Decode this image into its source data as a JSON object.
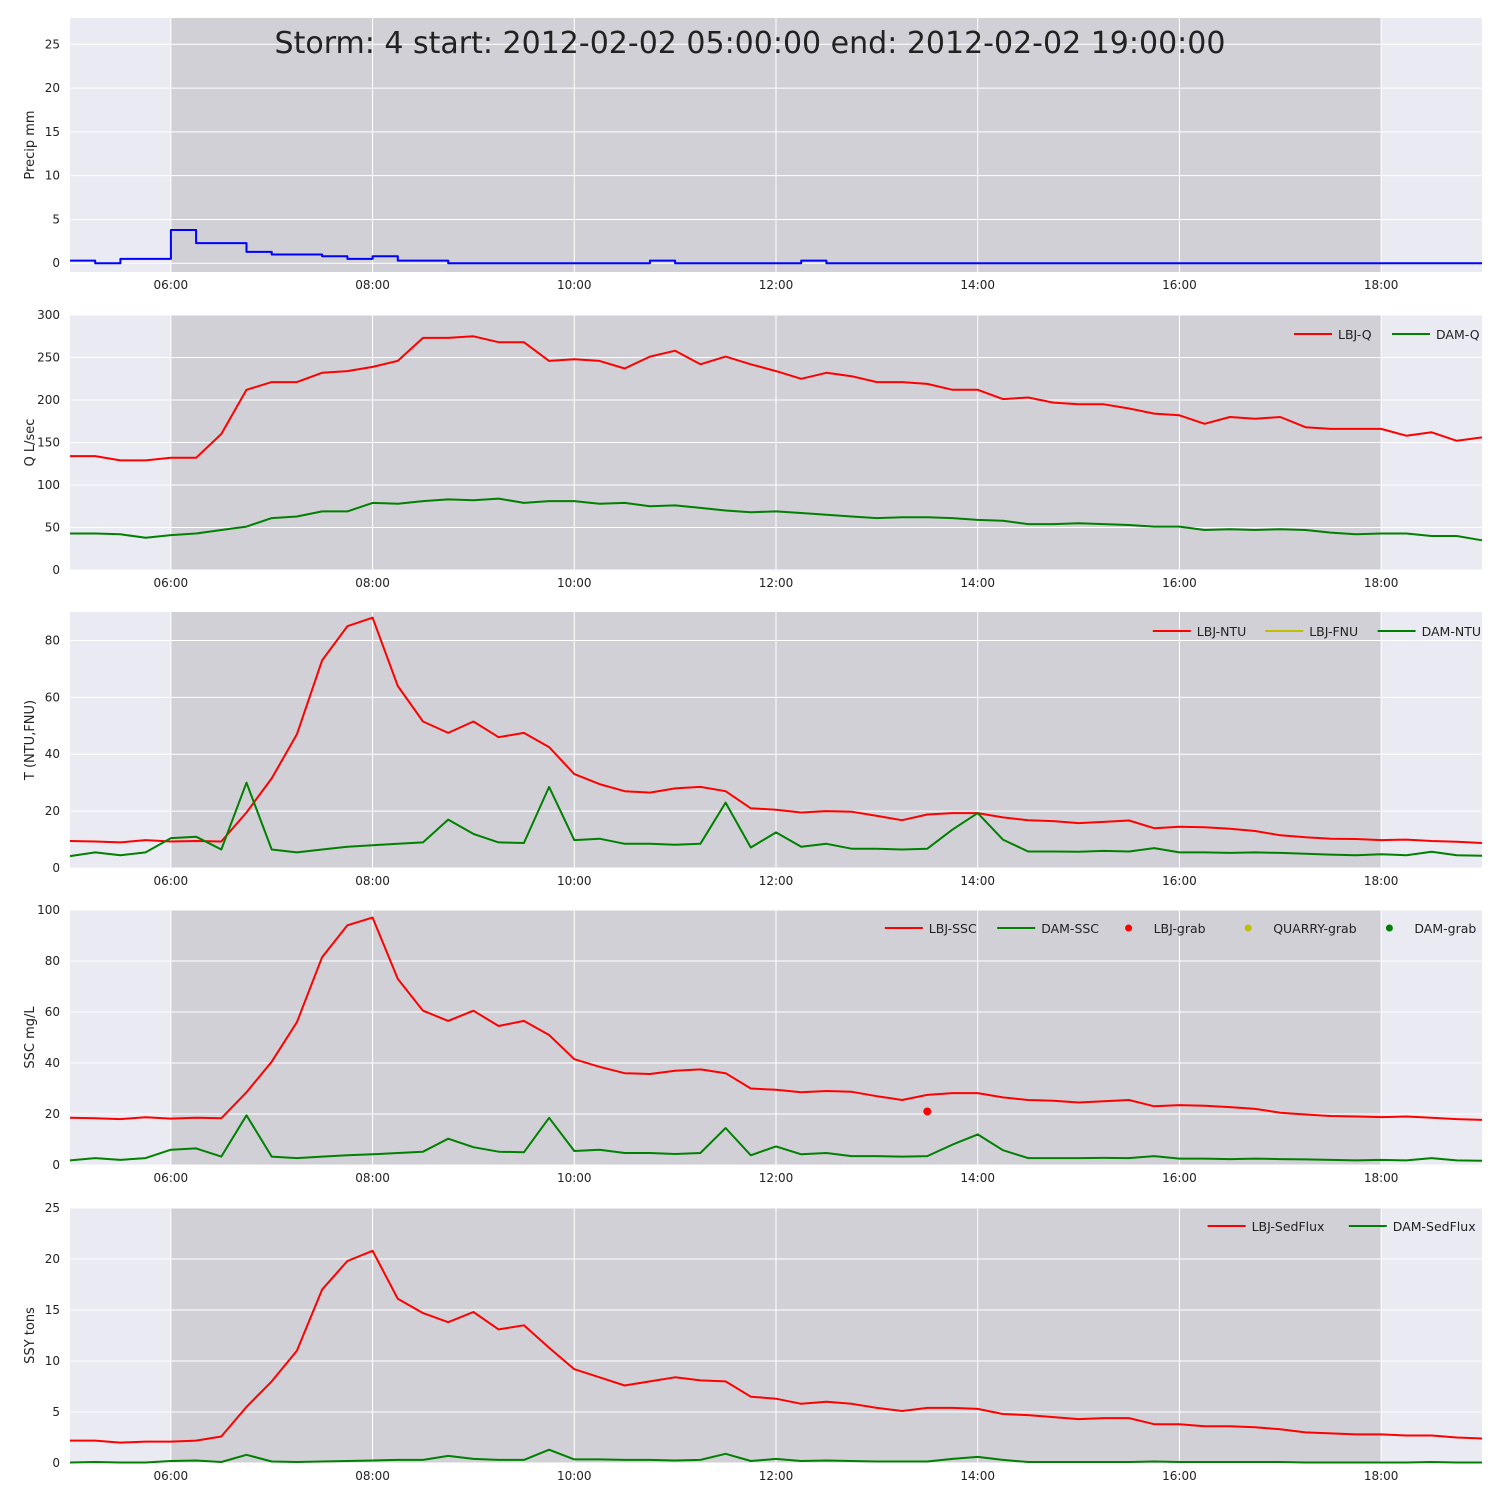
{
  "title": "Storm: 4 start: 2012-02-02 05:00:00 end: 2012-02-02 19:00:00",
  "colors": {
    "red": "#ff0000",
    "green": "#008000",
    "blue": "#0000ff",
    "yellow": "#bfbf00",
    "panel_bg": "#eaeaf2",
    "storm_shade": "#d0d0d6",
    "grid": "#ffffff"
  },
  "chart_data": [
    {
      "type": "line",
      "ylabel": "Precip mm",
      "ylim": [
        -1,
        28
      ],
      "yticks": [
        0,
        5,
        10,
        15,
        20,
        25
      ],
      "xlim": [
        "05:00",
        "19:00"
      ],
      "xticks": [
        "06:00",
        "08:00",
        "10:00",
        "12:00",
        "14:00",
        "16:00",
        "18:00"
      ],
      "storm_window": [
        "06:00",
        "18:00"
      ],
      "legend": [],
      "series": [
        {
          "step": true,
          "color": "blue",
          "x": [
            "05:00",
            "05:15",
            "05:30",
            "05:45",
            "06:00",
            "06:15",
            "06:30",
            "06:45",
            "07:00",
            "07:15",
            "07:30",
            "07:45",
            "08:00",
            "08:15",
            "08:30",
            "08:45",
            "09:00",
            "09:15",
            "09:30",
            "09:45",
            "10:00",
            "10:15",
            "10:30",
            "10:45",
            "11:00",
            "11:15",
            "11:30",
            "11:45",
            "12:00",
            "12:15",
            "12:30",
            "12:45",
            "19:00"
          ],
          "y": [
            0.3,
            0,
            0.5,
            0.5,
            3.8,
            2.3,
            2.3,
            1.3,
            1.0,
            1.0,
            0.8,
            0.5,
            0.8,
            0.3,
            0.3,
            0,
            0,
            0,
            0,
            0,
            0,
            0,
            0,
            0.3,
            0,
            0,
            0,
            0,
            0,
            0.3,
            0,
            0,
            0
          ]
        }
      ]
    },
    {
      "type": "line",
      "ylabel": "Q L/sec",
      "ylim": [
        0,
        300
      ],
      "yticks": [
        0,
        50,
        100,
        150,
        200,
        250,
        300
      ],
      "xlim": [
        "05:00",
        "19:00"
      ],
      "xticks": [
        "06:00",
        "08:00",
        "10:00",
        "12:00",
        "14:00",
        "16:00",
        "18:00"
      ],
      "storm_window": [
        "06:00",
        "18:00"
      ],
      "legend": [
        {
          "label": "LBJ-Q",
          "color": "red",
          "kind": "line"
        },
        {
          "label": "DAM-Q",
          "color": "green",
          "kind": "line"
        }
      ],
      "series": [
        {
          "name": "LBJ-Q",
          "color": "red",
          "y": [
            134,
            134,
            129,
            129,
            132,
            132,
            160,
            212,
            221,
            221,
            232,
            234,
            239,
            246,
            273,
            273,
            275,
            268,
            268,
            246,
            248,
            246,
            237,
            251,
            258,
            242,
            251,
            242,
            234,
            225,
            232,
            228,
            221,
            221,
            219,
            212,
            212,
            201,
            203,
            197,
            195,
            195,
            190,
            184,
            182,
            172,
            180,
            178,
            180,
            168,
            166,
            166,
            166,
            158,
            162,
            152,
            156
          ]
        },
        {
          "name": "DAM-Q",
          "color": "green",
          "y": [
            43,
            43,
            42,
            38,
            41,
            43,
            47,
            51,
            61,
            63,
            69,
            69,
            79,
            78,
            81,
            83,
            82,
            84,
            79,
            81,
            81,
            78,
            79,
            75,
            76,
            73,
            70,
            68,
            69,
            67,
            65,
            63,
            61,
            62,
            62,
            61,
            59,
            58,
            54,
            54,
            55,
            54,
            53,
            51,
            51,
            47,
            48,
            47,
            48,
            47,
            44,
            42,
            43,
            43,
            40,
            40,
            35
          ]
        }
      ]
    },
    {
      "type": "line",
      "ylabel": "T (NTU,FNU)",
      "ylim": [
        0,
        90
      ],
      "yticks": [
        0,
        20,
        40,
        60,
        80
      ],
      "xlim": [
        "05:00",
        "19:00"
      ],
      "xticks": [
        "06:00",
        "08:00",
        "10:00",
        "12:00",
        "14:00",
        "16:00",
        "18:00"
      ],
      "storm_window": [
        "06:00",
        "18:00"
      ],
      "legend": [
        {
          "label": "LBJ-NTU",
          "color": "red",
          "kind": "line"
        },
        {
          "label": "LBJ-FNU",
          "color": "yellow",
          "kind": "line"
        },
        {
          "label": "DAM-NTU",
          "color": "green",
          "kind": "line"
        }
      ],
      "series": [
        {
          "name": "LBJ-NTU",
          "color": "red",
          "y": [
            9.5,
            9.3,
            9.0,
            9.8,
            9.3,
            9.5,
            9.3,
            19.5,
            31.5,
            47,
            73,
            85,
            88,
            64,
            51.5,
            47.5,
            51.5,
            46,
            47.5,
            42.5,
            33,
            29.5,
            27,
            26.5,
            28,
            28.5,
            27,
            21,
            20.5,
            19.5,
            20,
            19.8,
            18.3,
            16.8,
            18.8,
            19.3,
            19.3,
            17.8,
            16.8,
            16.5,
            15.8,
            16.2,
            16.7,
            14,
            14.5,
            14.3,
            13.8,
            13,
            11.5,
            10.8,
            10.3,
            10.2,
            9.8,
            10,
            9.5,
            9.2,
            8.8
          ]
        },
        {
          "name": "DAM-NTU",
          "color": "green",
          "y": [
            4.2,
            5.5,
            4.5,
            5.5,
            10.5,
            11,
            6.5,
            30,
            6.5,
            5.5,
            6.5,
            7.5,
            8,
            8.5,
            9,
            17,
            12,
            9,
            8.8,
            28.5,
            9.8,
            10.3,
            8.5,
            8.5,
            8.2,
            8.5,
            23,
            7.2,
            12.5,
            7.5,
            8.5,
            6.8,
            6.8,
            6.5,
            6.8,
            13.5,
            19.3,
            10,
            5.8,
            5.8,
            5.7,
            6,
            5.8,
            7,
            5.5,
            5.5,
            5.3,
            5.5,
            5.3,
            5,
            4.7,
            4.5,
            4.8,
            4.5,
            5.7,
            4.5,
            4.3
          ]
        }
      ]
    },
    {
      "type": "line",
      "ylabel": "SSC mg/L",
      "ylim": [
        0,
        100
      ],
      "yticks": [
        0,
        20,
        40,
        60,
        80,
        100
      ],
      "xlim": [
        "05:00",
        "19:00"
      ],
      "xticks": [
        "06:00",
        "08:00",
        "10:00",
        "12:00",
        "14:00",
        "16:00",
        "18:00"
      ],
      "storm_window": [
        "06:00",
        "18:00"
      ],
      "legend": [
        {
          "label": "LBJ-SSC",
          "color": "red",
          "kind": "line"
        },
        {
          "label": "DAM-SSC",
          "color": "green",
          "kind": "line"
        },
        {
          "label": "LBJ-grab",
          "color": "red",
          "kind": "dot"
        },
        {
          "label": "QUARRY-grab",
          "color": "yellow",
          "kind": "dot"
        },
        {
          "label": "DAM-grab",
          "color": "green",
          "kind": "dot"
        }
      ],
      "series": [
        {
          "name": "LBJ-SSC",
          "color": "red",
          "y": [
            18.5,
            18.3,
            18,
            18.7,
            18.2,
            18.5,
            18.3,
            28.5,
            40.5,
            56,
            81.5,
            94,
            97,
            73,
            60.5,
            56.5,
            60.5,
            54.5,
            56.5,
            51,
            41.5,
            38.5,
            36,
            35.7,
            37,
            37.5,
            36,
            30,
            29.5,
            28.5,
            29,
            28.7,
            27,
            25.5,
            27.5,
            28.2,
            28.2,
            26.5,
            25.5,
            25.2,
            24.5,
            25,
            25.5,
            23,
            23.5,
            23.2,
            22.7,
            22,
            20.5,
            19.8,
            19.2,
            19,
            18.8,
            19,
            18.5,
            18,
            17.7
          ]
        },
        {
          "name": "DAM-SSC",
          "color": "green",
          "y": [
            1.8,
            2.7,
            2,
            2.7,
            6,
            6.5,
            3.3,
            19.5,
            3.3,
            2.7,
            3.3,
            3.8,
            4.2,
            4.7,
            5.2,
            10.3,
            7,
            5.2,
            5,
            18.5,
            5.5,
            6,
            4.7,
            4.7,
            4.3,
            4.7,
            14.5,
            3.8,
            7.3,
            4.2,
            4.7,
            3.5,
            3.5,
            3.3,
            3.5,
            8,
            12,
            5.8,
            2.7,
            2.7,
            2.7,
            2.8,
            2.7,
            3.5,
            2.5,
            2.5,
            2.3,
            2.5,
            2.3,
            2.2,
            2,
            1.8,
            2,
            1.8,
            2.7,
            1.8,
            1.7
          ]
        },
        {
          "name": "LBJ-grab",
          "color": "red",
          "kind": "dot",
          "x": [
            "13:30"
          ],
          "y": [
            21
          ]
        }
      ]
    },
    {
      "type": "line",
      "ylabel": "SSY tons",
      "ylim": [
        0,
        25
      ],
      "yticks": [
        0,
        5,
        10,
        15,
        20,
        25
      ],
      "xlim": [
        "05:00",
        "19:00"
      ],
      "xticks": [
        "06:00",
        "08:00",
        "10:00",
        "12:00",
        "14:00",
        "16:00",
        "18:00"
      ],
      "storm_window": [
        "06:00",
        "18:00"
      ],
      "legend": [
        {
          "label": "LBJ-SedFlux",
          "color": "red",
          "kind": "line"
        },
        {
          "label": "DAM-SedFlux",
          "color": "green",
          "kind": "line"
        }
      ],
      "series": [
        {
          "name": "LBJ-SedFlux",
          "color": "red",
          "y": [
            2.2,
            2.2,
            2.0,
            2.1,
            2.1,
            2.2,
            2.6,
            5.5,
            8,
            11,
            17,
            19.8,
            20.8,
            16.1,
            14.7,
            13.8,
            14.8,
            13.1,
            13.5,
            11.3,
            9.2,
            8.4,
            7.6,
            8,
            8.4,
            8.1,
            8,
            6.5,
            6.3,
            5.8,
            6,
            5.8,
            5.4,
            5.1,
            5.4,
            5.4,
            5.3,
            4.8,
            4.7,
            4.5,
            4.3,
            4.4,
            4.4,
            3.8,
            3.8,
            3.6,
            3.6,
            3.5,
            3.3,
            3,
            2.9,
            2.8,
            2.8,
            2.7,
            2.7,
            2.5,
            2.4
          ]
        },
        {
          "name": "DAM-SedFlux",
          "color": "green",
          "y": [
            0.05,
            0.1,
            0.05,
            0.05,
            0.2,
            0.25,
            0.1,
            0.8,
            0.15,
            0.1,
            0.15,
            0.2,
            0.25,
            0.3,
            0.3,
            0.7,
            0.4,
            0.3,
            0.3,
            1.3,
            0.35,
            0.35,
            0.3,
            0.3,
            0.25,
            0.3,
            0.9,
            0.2,
            0.4,
            0.2,
            0.25,
            0.2,
            0.15,
            0.15,
            0.15,
            0.4,
            0.6,
            0.3,
            0.1,
            0.1,
            0.1,
            0.1,
            0.1,
            0.15,
            0.1,
            0.1,
            0.1,
            0.1,
            0.1,
            0.05,
            0.05,
            0.05,
            0.05,
            0.05,
            0.1,
            0.05,
            0.05
          ]
        }
      ]
    }
  ]
}
